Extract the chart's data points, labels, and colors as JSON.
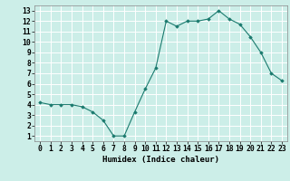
{
  "x": [
    0,
    1,
    2,
    3,
    4,
    5,
    6,
    7,
    8,
    9,
    10,
    11,
    12,
    13,
    14,
    15,
    16,
    17,
    18,
    19,
    20,
    21,
    22,
    23
  ],
  "y": [
    4.2,
    4.0,
    4.0,
    4.0,
    3.8,
    3.3,
    2.5,
    1.0,
    1.0,
    3.3,
    5.5,
    7.5,
    12.0,
    11.5,
    12.0,
    12.0,
    12.2,
    13.0,
    12.2,
    11.7,
    10.5,
    9.0,
    7.0,
    6.3
  ],
  "line_color": "#1a7a6e",
  "marker_color": "#1a7a6e",
  "bg_color": "#cceee8",
  "grid_color": "#ffffff",
  "xlabel": "Humidex (Indice chaleur)",
  "xlim": [
    -0.5,
    23.5
  ],
  "ylim": [
    0.5,
    13.5
  ],
  "xtick_labels": [
    "0",
    "1",
    "2",
    "3",
    "4",
    "5",
    "6",
    "7",
    "8",
    "9",
    "10",
    "11",
    "12",
    "13",
    "14",
    "15",
    "16",
    "17",
    "18",
    "19",
    "20",
    "21",
    "22",
    "23"
  ],
  "ytick_values": [
    1,
    2,
    3,
    4,
    5,
    6,
    7,
    8,
    9,
    10,
    11,
    12,
    13
  ],
  "font_size_label": 6.5,
  "font_size_tick": 5.8
}
